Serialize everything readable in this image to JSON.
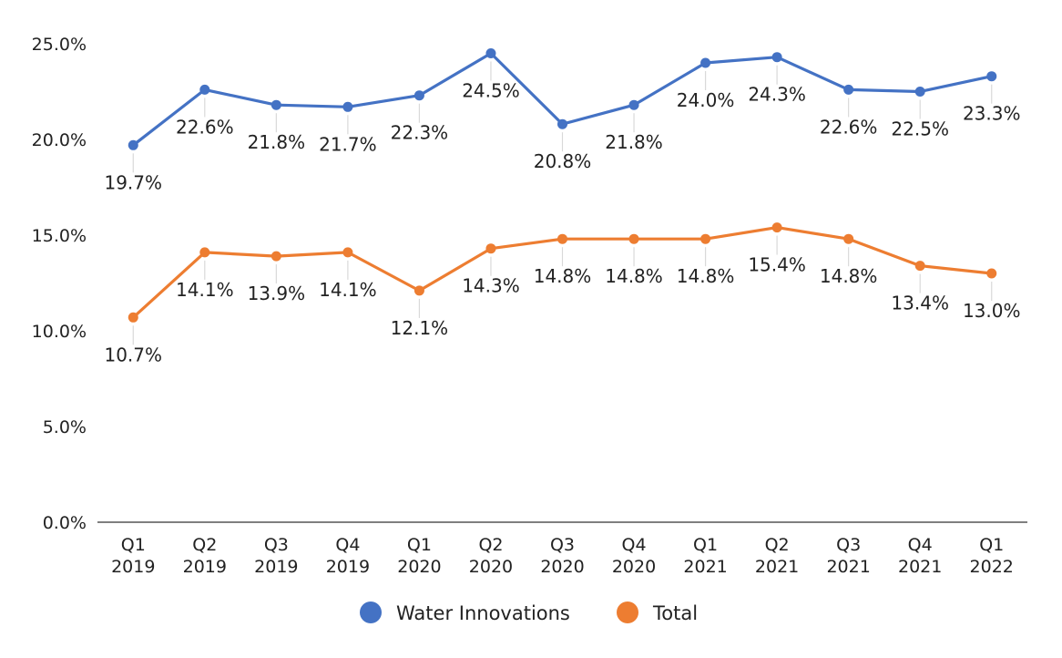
{
  "chart_data": {
    "type": "line",
    "categories": [
      [
        "Q1",
        "2019"
      ],
      [
        "Q2",
        "2019"
      ],
      [
        "Q3",
        "2019"
      ],
      [
        "Q4",
        "2019"
      ],
      [
        "Q1",
        "2020"
      ],
      [
        "Q2",
        "2020"
      ],
      [
        "Q3",
        "2020"
      ],
      [
        "Q4",
        "2020"
      ],
      [
        "Q1",
        "2021"
      ],
      [
        "Q2",
        "2021"
      ],
      [
        "Q3",
        "2021"
      ],
      [
        "Q4",
        "2021"
      ],
      [
        "Q1",
        "2022"
      ]
    ],
    "series": [
      {
        "name": "Water Innovations",
        "color": "#4472C4",
        "values": [
          19.7,
          22.6,
          21.8,
          21.7,
          22.3,
          24.5,
          20.8,
          21.8,
          24.0,
          24.3,
          22.6,
          22.5,
          23.3
        ],
        "labels": [
          "19.7%",
          "22.6%",
          "21.8%",
          "21.7%",
          "22.3%",
          "24.5%",
          "20.8%",
          "21.8%",
          "24.0%",
          "24.3%",
          "22.6%",
          "22.5%",
          "23.3%"
        ]
      },
      {
        "name": "Total",
        "color": "#ED7D31",
        "values": [
          10.7,
          14.1,
          13.9,
          14.1,
          12.1,
          14.3,
          14.8,
          14.8,
          14.8,
          15.4,
          14.8,
          13.4,
          13.0
        ],
        "labels": [
          "10.7%",
          "14.1%",
          "13.9%",
          "14.1%",
          "12.1%",
          "14.3%",
          "14.8%",
          "14.8%",
          "14.8%",
          "15.4%",
          "14.8%",
          "13.4%",
          "13.0%"
        ]
      }
    ],
    "yticks": [
      0,
      5,
      10,
      15,
      20,
      25
    ],
    "ytick_labels": [
      "0.0%",
      "5.0%",
      "10.0%",
      "15.0%",
      "20.0%",
      "25.0%"
    ],
    "ylim": [
      0,
      25
    ],
    "grid": false,
    "legend_position": "bottom",
    "title": "",
    "xlabel": "",
    "ylabel": ""
  }
}
